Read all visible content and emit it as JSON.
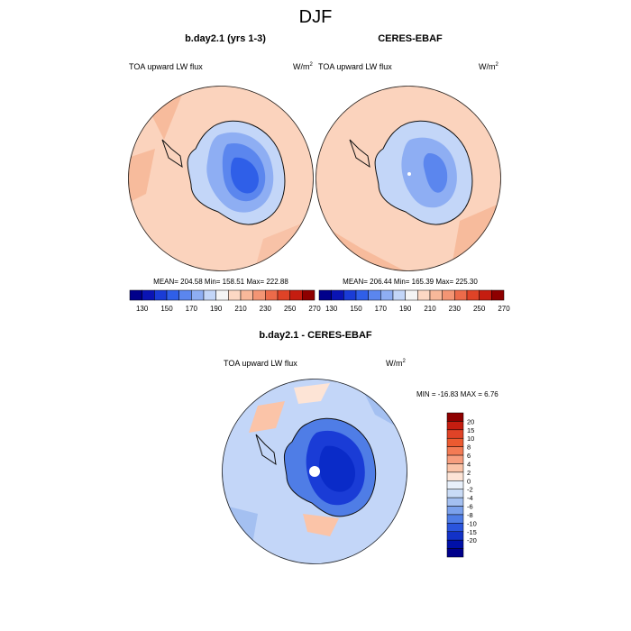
{
  "figure": {
    "season": "DJF"
  },
  "panels": {
    "model": {
      "title": "b.day2.1 (yrs 1-3)",
      "variable": "TOA upward LW flux",
      "units": "W/m",
      "units_exp": "2",
      "stats": "MEAN= 204.58  Min= 158.51  Max= 222.88"
    },
    "obs": {
      "title": "CERES-EBAF",
      "variable": "TOA upward LW flux",
      "units": "W/m",
      "units_exp": "2",
      "stats": "MEAN= 206.44  Min= 165.39  Max= 225.30"
    },
    "diff": {
      "title": "b.day2.1 - CERES-EBAF",
      "variable": "TOA upward LW flux",
      "units": "W/m",
      "units_exp": "2",
      "stats": "MIN = -16.83 MAX =   6.76"
    }
  },
  "colorbar_abs": {
    "colors": [
      "#00008b",
      "#0a14b4",
      "#1a3cd6",
      "#2f5fe8",
      "#5b86ee",
      "#8eaef3",
      "#c3d6f8",
      "#f4f4f4",
      "#fcd8c4",
      "#f8b89a",
      "#f39574",
      "#ec6b4a",
      "#df4327",
      "#c51d10",
      "#8e0000"
    ],
    "labels": [
      "130",
      "150",
      "170",
      "190",
      "210",
      "230",
      "250",
      "270"
    ]
  },
  "colorbar_diff": {
    "colors": [
      "#8e0000",
      "#c51d10",
      "#df4327",
      "#ec5a30",
      "#f37b54",
      "#f79e7e",
      "#fbc4a8",
      "#fde4d6",
      "#e8f0fb",
      "#c9dbf6",
      "#a4c0f1",
      "#7ba1ec",
      "#4f7de6",
      "#2a55dd",
      "#1232c8",
      "#0010a8",
      "#00008b"
    ],
    "labels": [
      "20",
      "15",
      "10",
      "8",
      "6",
      "4",
      "2",
      "0",
      "-2",
      "-4",
      "-6",
      "-8",
      "-10",
      "-15",
      "-20"
    ]
  },
  "colors": {
    "ocean_abs": "#fbd3bd",
    "ocean_abs_dark": "#f7bb9c",
    "ice_low": "#2f5fe8",
    "ice_mid": "#5b86ee",
    "ice_light": "#8eaef3",
    "ice_pale": "#c3d6f8",
    "diff_ocean": "#c3d6f8",
    "diff_ocean2": "#a4c0f1",
    "diff_ice": "#1a3cd6",
    "diff_ice2": "#0a2bc8",
    "diff_warm": "#fbc4a8",
    "coast": "#111111"
  }
}
